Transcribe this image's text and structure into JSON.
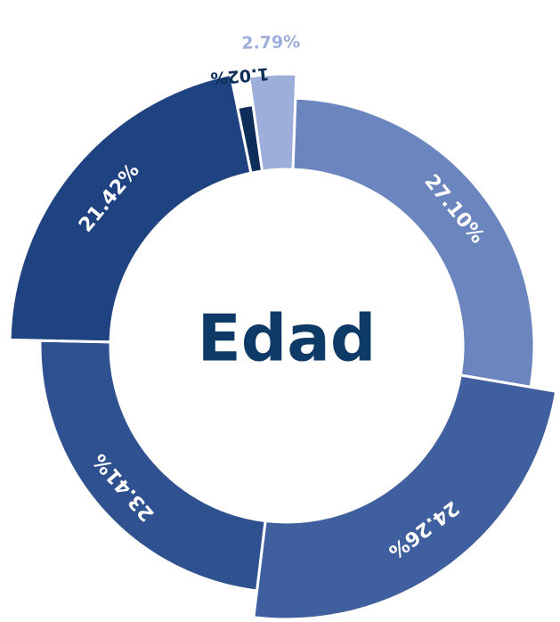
{
  "chart_data": {
    "type": "donut",
    "title": "Edad",
    "categories": [
      null,
      null,
      null,
      null,
      null,
      null
    ],
    "values": [
      2.79,
      27.1,
      24.26,
      23.41,
      21.42,
      1.02
    ],
    "value_labels": [
      "2.79%",
      "27.10%",
      "24.26%",
      "23.41%",
      "21.42%",
      "1.02%"
    ],
    "colors": [
      "#9daedb",
      "#6b86bf",
      "#3f5f9e",
      "#2f5190",
      "#1f4280",
      "#0e2e5a"
    ]
  }
}
